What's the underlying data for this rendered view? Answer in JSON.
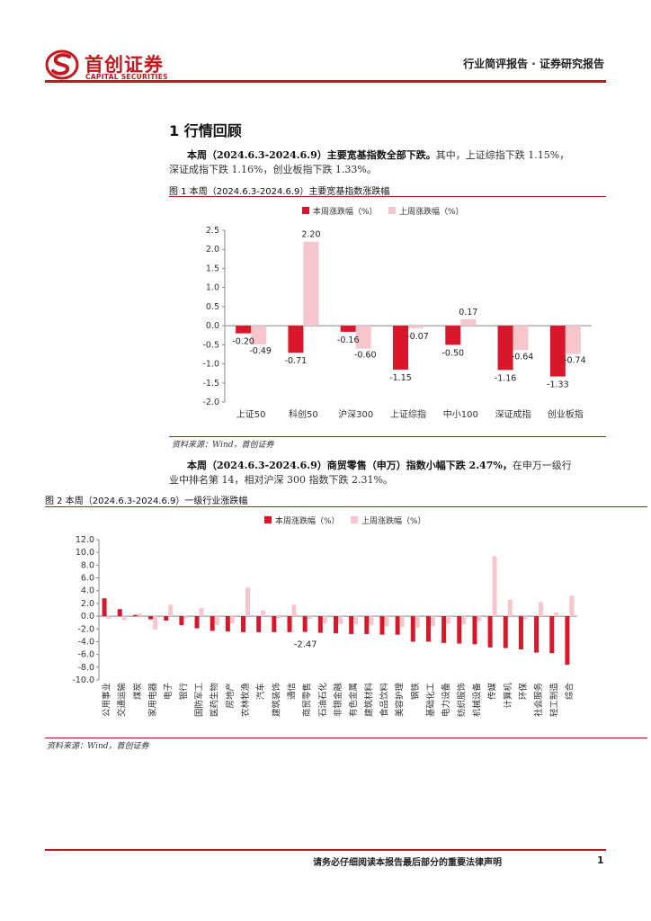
{
  "header": {
    "logo_cn": "首创证券",
    "logo_en": "CAPITAL SECURITIES",
    "report_type": "行业简评报告 · 证券研究报告"
  },
  "section": {
    "title": "1 行情回顾"
  },
  "para1": {
    "bold": "本周（2024.6.3-2024.6.9）主要宽基指数全部下跌。",
    "l1_rest": "其中，上证综指下跌 1.15%，",
    "l2": "深证成指下跌 1.16%，创业板指下跌 1.33%。"
  },
  "figure1": {
    "caption": "图 1 本周（2024.6.3-2024.6.9）主要宽基指数涨跌幅",
    "source": "资料来源：Wind，首创证券"
  },
  "para2": {
    "bold": "本周（2024.6.3-2024.6.9）商贸零售（申万）指数小幅下跌 2.47%，",
    "l1_rest": "在申万一级行",
    "l2": "业中排名第 14，相对沪深 300 指数下跌 2.31%。"
  },
  "figure2": {
    "caption": "图 2 本周（2024.6.3-2024.6.9）一级行业涨跌幅",
    "source": "资料来源：Wind，首创证券"
  },
  "footer": {
    "disclaimer": "请务必仔细阅读本报告最后部分的重要法律声明",
    "page": "1"
  },
  "colors": {
    "brand": "#c8161d",
    "this_week": "#d9172b",
    "last_week": "#f7c6cc"
  },
  "chart_data": [
    {
      "type": "bar",
      "categories": [
        "上证50",
        "科创50",
        "沪深300",
        "上证综指",
        "中小100",
        "深证成指",
        "创业板指"
      ],
      "series": [
        {
          "name": "本周涨跌幅（%）",
          "values": [
            -0.2,
            -0.71,
            -0.16,
            -1.15,
            -0.5,
            -1.16,
            -1.33
          ]
        },
        {
          "name": "上周涨跌幅（%）",
          "values": [
            -0.49,
            2.2,
            -0.6,
            -0.07,
            0.17,
            -0.64,
            -0.74
          ]
        }
      ],
      "data_labels": {
        "本周涨跌幅（%）": [
          "-0.20",
          "-0.71",
          "-0.16",
          "-1.15",
          "-0.50",
          "-1.16",
          "-1.33"
        ],
        "上周涨跌幅（%）": [
          "-0.49",
          "2.20",
          "-0.60",
          "-0.07",
          "0.17",
          "-0.64",
          "-0.74"
        ]
      },
      "ylim": [
        -2.0,
        2.5
      ],
      "yticks": [
        "2.5",
        "2.0",
        "1.5",
        "1.0",
        "0.5",
        "0.0",
        "-0.5",
        "-1.0",
        "-1.5",
        "-2.0"
      ],
      "legend": "top",
      "grid": false
    },
    {
      "type": "bar",
      "categories": [
        "公用事业",
        "交通运输",
        "煤炭",
        "家用电器",
        "电子",
        "银行",
        "国防军工",
        "医药生物",
        "房地产",
        "农林牧渔",
        "汽车",
        "建筑装饰",
        "通信",
        "商贸零售",
        "石油石化",
        "非银金融",
        "有色金属",
        "建筑材料",
        "食品饮料",
        "美容护理",
        "钢铁",
        "基础化工",
        "电力设备",
        "纺织服饰",
        "机械设备",
        "传媒",
        "计算机",
        "环保",
        "社会服务",
        "轻工制造",
        "综合"
      ],
      "series": [
        {
          "name": "本周涨跌幅（%）",
          "values": [
            2.8,
            1.1,
            0.2,
            -0.5,
            -0.7,
            -1.4,
            -1.9,
            -2.3,
            -2.4,
            -2.5,
            -2.5,
            -2.5,
            -2.5,
            -2.47,
            -2.6,
            -2.7,
            -2.8,
            -2.8,
            -2.9,
            -2.9,
            -4.0,
            -4.0,
            -4.2,
            -4.3,
            -4.4,
            -4.9,
            -5.0,
            -5.2,
            -5.7,
            -5.8,
            -7.6
          ]
        },
        {
          "name": "上周涨跌幅（%）",
          "values": [
            -0.4,
            -0.6,
            0.4,
            -2.1,
            1.8,
            -0.3,
            1.3,
            -1.4,
            -1.1,
            4.5,
            0.9,
            -0.3,
            1.8,
            -0.4,
            -1.1,
            -1.2,
            -1.3,
            -1.4,
            -1.6,
            -1.7,
            -1.8,
            -1.6,
            -1.2,
            -1.3,
            -0.8,
            9.4,
            2.6,
            -0.5,
            2.2,
            0.6,
            3.2
          ]
        }
      ],
      "annotation": "-2.47",
      "ylim": [
        -10.0,
        12.0
      ],
      "yticks": [
        "12.0",
        "10.0",
        "8.0",
        "6.0",
        "4.0",
        "2.0",
        "0.0",
        "-2.0",
        "-4.0",
        "-6.0",
        "-8.0",
        "-10.0"
      ],
      "legend": "top",
      "grid": false
    }
  ]
}
